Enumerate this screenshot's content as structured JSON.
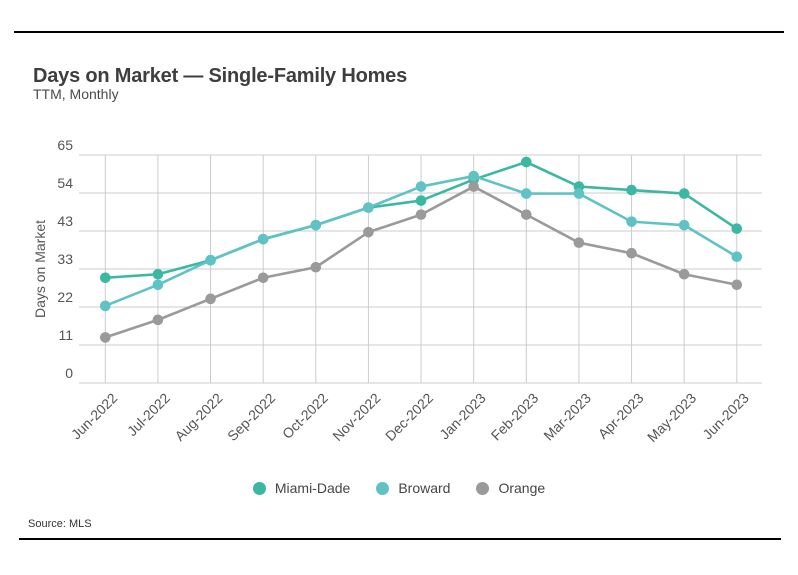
{
  "header": {
    "title": "Days on Market — Single-Family Homes",
    "subtitle": "TTM, Monthly"
  },
  "chart_data": {
    "type": "line",
    "title": "Days on Market — Single-Family Homes",
    "subtitle": "TTM, Monthly",
    "categories": [
      "Jun-2022",
      "Jul-2022",
      "Aug-2022",
      "Sep-2022",
      "Oct-2022",
      "Nov-2022",
      "Dec-2022",
      "Jan-2023",
      "Feb-2023",
      "Mar-2023",
      "Apr-2023",
      "May-2023",
      "Jun-2023"
    ],
    "series": [
      {
        "name": "Miami-Dade",
        "color": "#3cb8a2",
        "values": [
          30,
          31,
          35,
          41,
          45,
          50,
          52,
          58,
          63,
          56,
          55,
          54,
          44
        ]
      },
      {
        "name": "Broward",
        "color": "#5fc3c6",
        "values": [
          22,
          28,
          35,
          41,
          45,
          50,
          56,
          59,
          54,
          54,
          46,
          45,
          36
        ]
      },
      {
        "name": "Orange",
        "color": "#9a9a9a",
        "values": [
          13,
          18,
          24,
          30,
          33,
          43,
          48,
          56,
          48,
          40,
          37,
          31,
          28
        ]
      }
    ],
    "xlabel": "",
    "ylabel": "Days on Market",
    "ylim": [
      0,
      65
    ],
    "yticks": [
      0,
      11,
      22,
      33,
      43,
      54,
      65
    ],
    "grid": true,
    "legend_position": "bottom",
    "grid_color": "#cccccc",
    "axis_text_color": "#555555"
  },
  "footer": {
    "source": "Source: MLS"
  }
}
